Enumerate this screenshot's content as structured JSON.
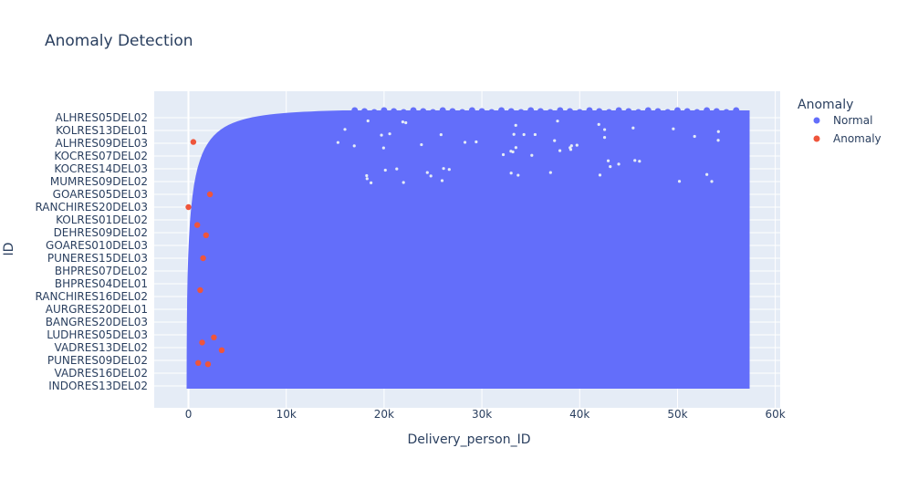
{
  "chart_data": {
    "type": "scatter",
    "title": "Anomaly Detection",
    "xlabel": "Delivery_person_ID",
    "ylabel": "ID",
    "xlim": [
      -3500,
      60500
    ],
    "x_ticks": [
      0,
      10000,
      20000,
      30000,
      40000,
      50000,
      60000
    ],
    "x_tick_labels": [
      "0",
      "10k",
      "20k",
      "30k",
      "40k",
      "50k",
      "60k"
    ],
    "y_categories": [
      "INDORES13DEL02",
      "VADRES16DEL02",
      "PUNERES09DEL02",
      "VADRES13DEL02",
      "LUDHRES05DEL03",
      "BANGRES20DEL03",
      "AURGRES20DEL01",
      "RANCHIRES16DEL02",
      "BHPRES04DEL01",
      "BHPRES07DEL02",
      "PUNERES15DEL03",
      "GOARES010DEL03",
      "DEHRES09DEL02",
      "KOLRES01DEL02",
      "RANCHIRES20DEL03",
      "GOARES05DEL03",
      "MUMRES09DEL02",
      "KOCRES14DEL03",
      "KOCRES07DEL02",
      "ALHRES09DEL03",
      "KOLRES13DEL01",
      "ALHRES05DEL02"
    ],
    "legend": {
      "title": "Anomaly",
      "position": "top-right",
      "entries": [
        {
          "label": "Normal",
          "color": "#636efa"
        },
        {
          "label": "Anomaly",
          "color": "#ef553b"
        }
      ]
    },
    "series": [
      {
        "name": "Normal",
        "color": "#636efa",
        "description": "dense band covering x 0 to 57000 across all categories",
        "x_max": 57000
      },
      {
        "name": "Anomaly",
        "color": "#ef553b",
        "x": [
          500,
          2200,
          0,
          900,
          1800,
          1500,
          1200,
          2600,
          1400,
          3400,
          1000,
          2000
        ],
        "y": [
          19.1,
          15.0,
          14.0,
          12.6,
          11.8,
          10.0,
          7.5,
          3.8,
          3.4,
          2.8,
          1.8,
          1.7
        ]
      }
    ],
    "grid": true
  }
}
